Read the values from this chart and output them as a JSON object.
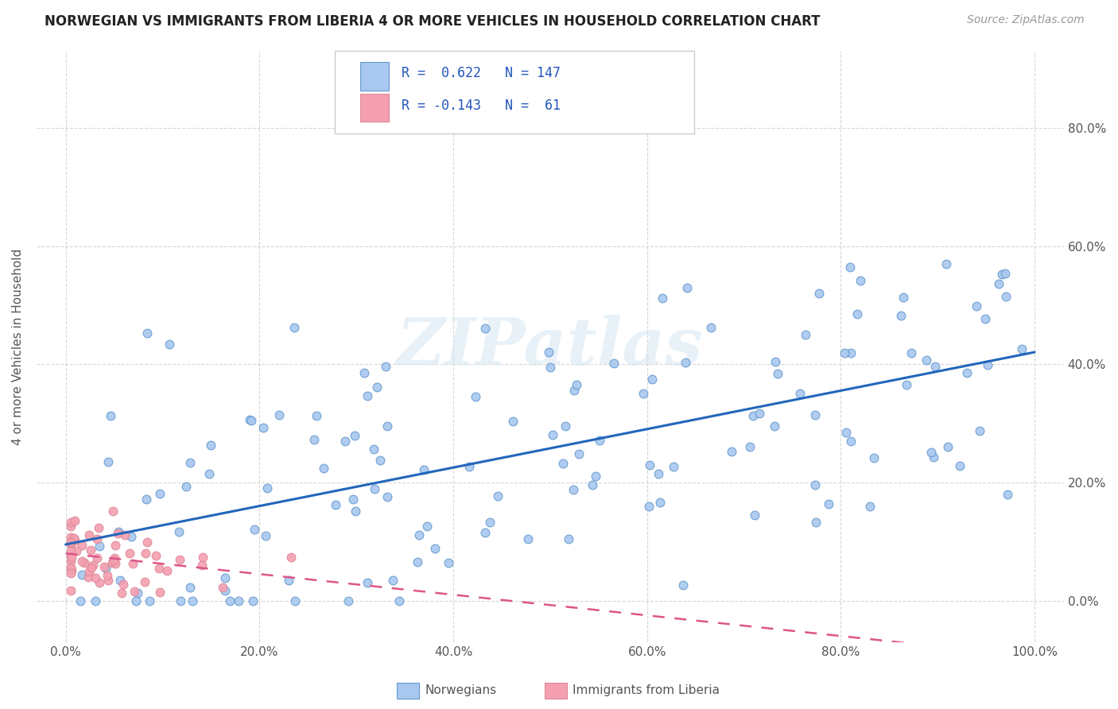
{
  "title": "NORWEGIAN VS IMMIGRANTS FROM LIBERIA 4 OR MORE VEHICLES IN HOUSEHOLD CORRELATION CHART",
  "source": "Source: ZipAtlas.com",
  "ylabel": "4 or more Vehicles in Household",
  "xlim": [
    -3,
    103
  ],
  "ylim": [
    -7,
    93
  ],
  "xtick_vals": [
    0,
    20,
    40,
    60,
    80,
    100
  ],
  "ytick_vals": [
    0,
    20,
    40,
    60,
    80
  ],
  "norwegian_color": "#a8c8f0",
  "liberia_color": "#f4a0b0",
  "norwegian_edge": "#6699cc",
  "liberia_edge": "#dd8899",
  "trend_norwegian_color": "#2266bb",
  "trend_liberia_color": "#dd5588",
  "watermark_color": "#d0e4f0",
  "legend_r_norwegian": "0.622",
  "legend_n_norwegian": "147",
  "legend_r_liberia": "-0.143",
  "legend_n_liberia": "61",
  "legend_text_color": "#2255bb",
  "grid_color": "#cccccc",
  "title_color": "#222222",
  "source_color": "#999999",
  "label_color": "#555555"
}
